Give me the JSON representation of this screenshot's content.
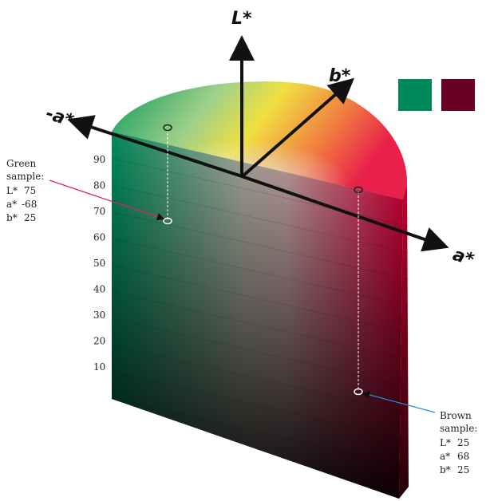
{
  "axes": {
    "l": "L*",
    "a_pos": "a*",
    "a_neg": "-a*",
    "b": "b*"
  },
  "scale": [
    "90",
    "80",
    "70",
    "60",
    "50",
    "40",
    "30",
    "20",
    "10"
  ],
  "green_sample": {
    "title1": "Green",
    "title2": "sample:",
    "l_label": "L*",
    "l": "75",
    "a_label": "a*",
    "a": "-68",
    "b_label": "b*",
    "b": "25",
    "color": "#008a5a"
  },
  "brown_sample": {
    "title1": "Brown",
    "title2": "sample:",
    "l_label": "L*",
    "l": "25",
    "a_label": "a*",
    "a": "68",
    "b_label": "b*",
    "b": "25",
    "color": "#6a0022"
  }
}
